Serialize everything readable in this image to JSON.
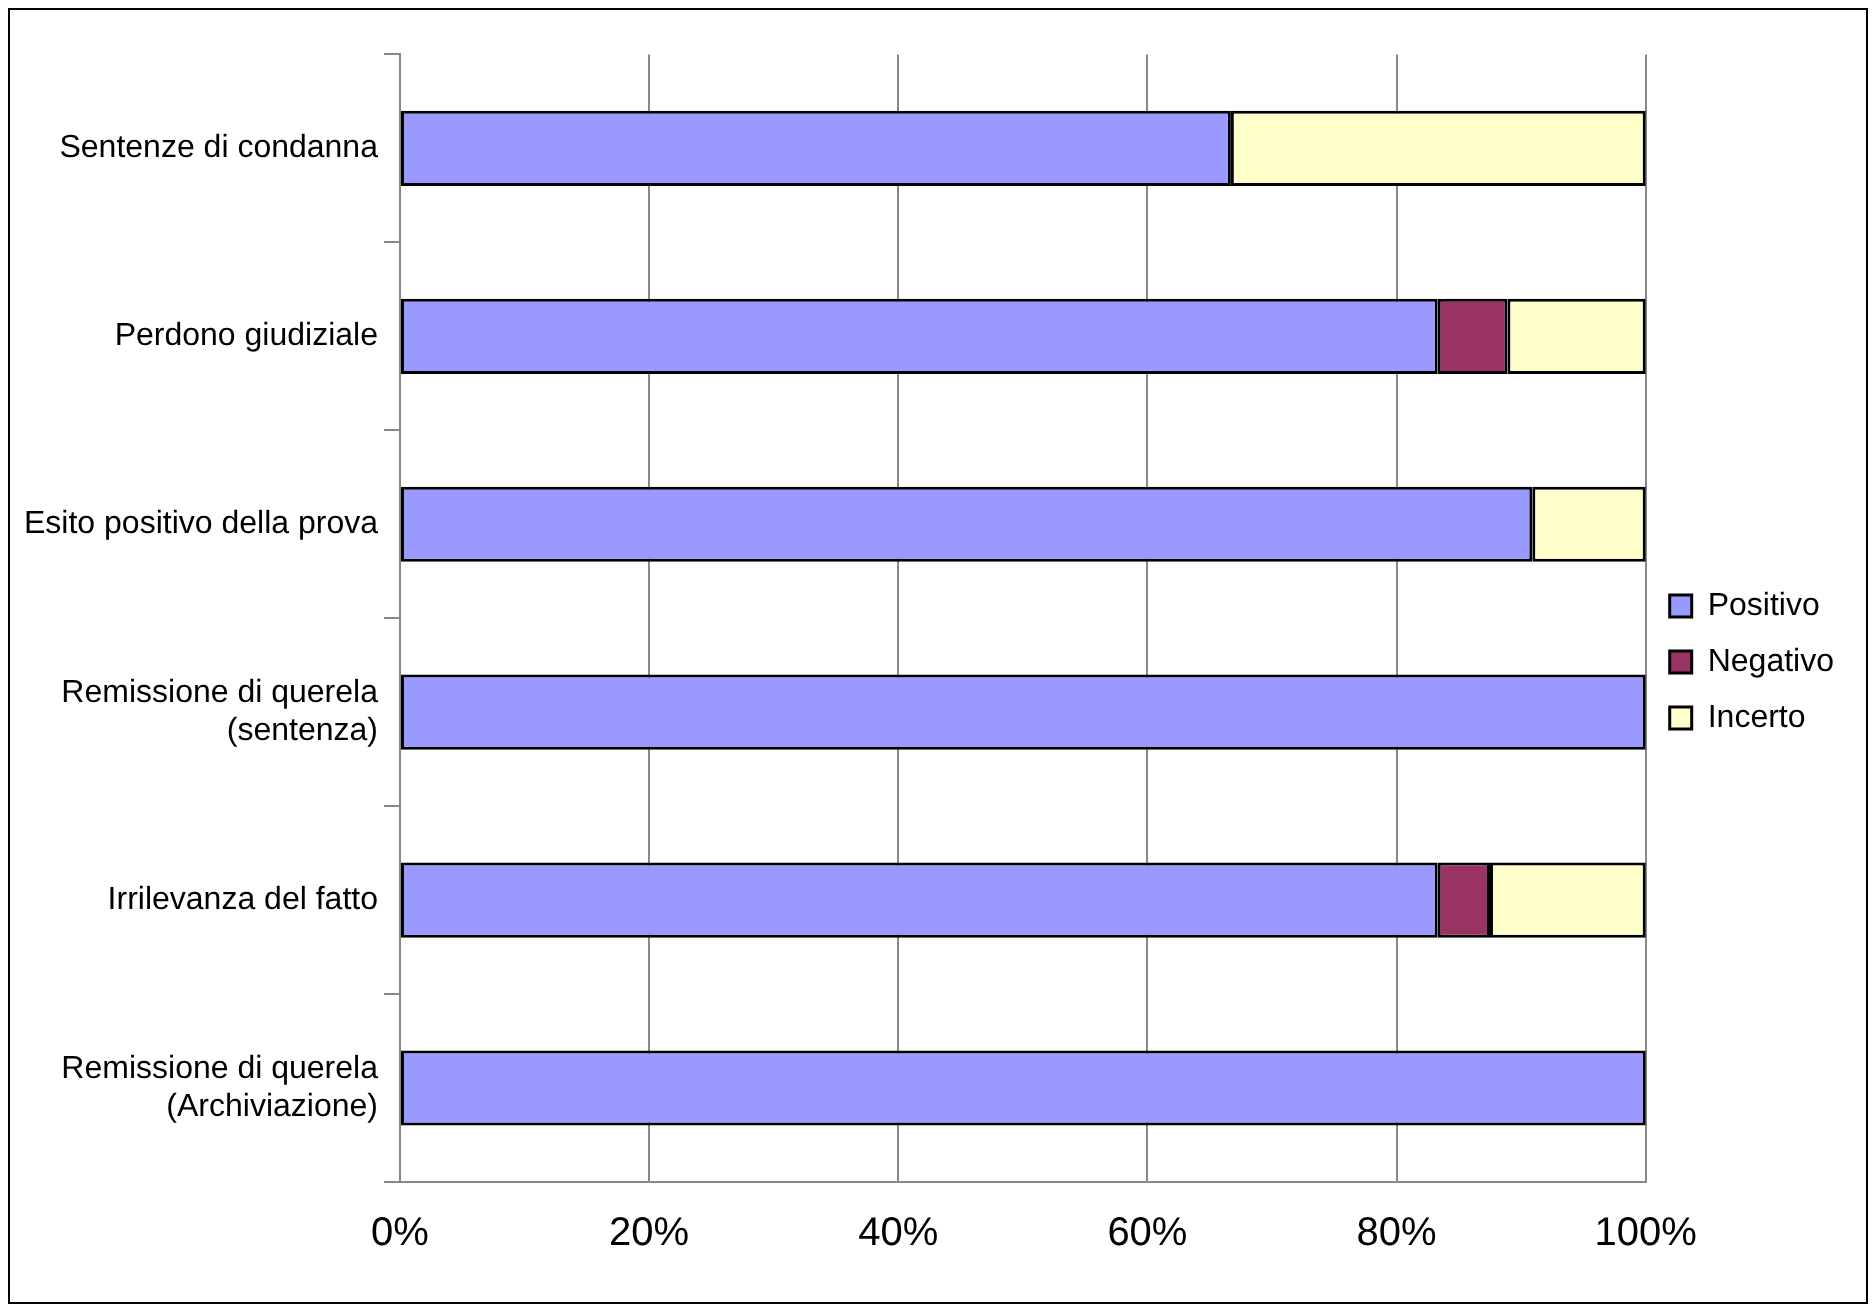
{
  "chart_data": {
    "type": "bar",
    "orientation": "horizontal",
    "stacked": true,
    "categories": [
      "Sentenze di condanna",
      "Perdono giudiziale",
      "Esito positivo della prova",
      "Remissione di querela (sentenza)",
      "Irrilevanza del fatto",
      "Remissione di querela (Archiviazione)"
    ],
    "series": [
      {
        "name": "Positivo",
        "color": "#9999ff",
        "values": [
          66.7,
          83.3,
          90.9,
          100,
          83.3,
          100
        ]
      },
      {
        "name": "Negativo",
        "color": "#993366",
        "values": [
          0,
          5.6,
          0,
          0,
          4.2,
          0
        ]
      },
      {
        "name": "Incerto",
        "color": "#ffffcc",
        "values": [
          33.3,
          11.1,
          9.1,
          0,
          12.5,
          0
        ]
      }
    ],
    "xlim": [
      0,
      100
    ],
    "xticks": [
      {
        "value": 0,
        "label": "0%"
      },
      {
        "value": 20,
        "label": "20%"
      },
      {
        "value": 40,
        "label": "40%"
      },
      {
        "value": 60,
        "label": "60%"
      },
      {
        "value": 80,
        "label": "80%"
      },
      {
        "value": 100,
        "label": "100%"
      }
    ],
    "grid": "x",
    "legend": "right"
  }
}
